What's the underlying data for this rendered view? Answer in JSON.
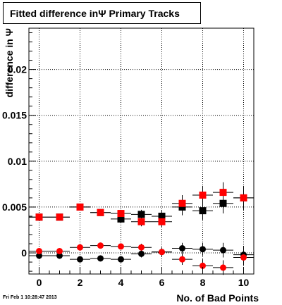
{
  "chart_data": {
    "type": "scatter",
    "title": "Fitted difference inΨ  Primary Tracks",
    "xlabel": "No. of Bad Points",
    "ylabel": "difference in Ψ",
    "xlim": [
      -0.5,
      10.5
    ],
    "ylim": [
      -0.0023,
      0.0245
    ],
    "x_ticks": [
      0,
      2,
      4,
      6,
      8,
      10
    ],
    "y_ticks": [
      {
        "value": 0,
        "label": "0"
      },
      {
        "value": 0.005,
        "label": "0.005"
      },
      {
        "value": 0.01,
        "label": "0.01"
      },
      {
        "value": 0.015,
        "label": "0.015"
      },
      {
        "value": 0.02,
        "label": "0.02"
      }
    ],
    "grid": true,
    "series": [
      {
        "marker": "square",
        "color": "#000000",
        "points": [
          {
            "x": 0,
            "y": 0.0039,
            "err": 0.0001
          },
          {
            "x": 1,
            "y": 0.0039,
            "err": 0.0001
          },
          {
            "x": 2,
            "y": 0.005,
            "err": 0.0002
          },
          {
            "x": 3,
            "y": 0.0044,
            "err": 0.0003
          },
          {
            "x": 4,
            "y": 0.0037,
            "err": 0.0004
          },
          {
            "x": 5,
            "y": 0.0042,
            "err": 0.0005
          },
          {
            "x": 6,
            "y": 0.004,
            "err": 0.0006
          },
          {
            "x": 7,
            "y": 0.005,
            "err": 0.0009
          },
          {
            "x": 8,
            "y": 0.0046,
            "err": 0.001
          },
          {
            "x": 9,
            "y": 0.0054,
            "err": 0.0011
          },
          {
            "x": 10,
            "y": 0.006,
            "err": 0.0013
          }
        ]
      },
      {
        "marker": "square",
        "color": "#ff0000",
        "points": [
          {
            "x": 0,
            "y": 0.0039,
            "err": 0.0001
          },
          {
            "x": 1,
            "y": 0.0039,
            "err": 0.0001
          },
          {
            "x": 2,
            "y": 0.005,
            "err": 0.0002
          },
          {
            "x": 3,
            "y": 0.0044,
            "err": 0.0003
          },
          {
            "x": 4,
            "y": 0.0043,
            "err": 0.0004
          },
          {
            "x": 5,
            "y": 0.0034,
            "err": 0.0005
          },
          {
            "x": 6,
            "y": 0.0034,
            "err": 0.0006
          },
          {
            "x": 7,
            "y": 0.0054,
            "err": 0.0009
          },
          {
            "x": 8,
            "y": 0.0063,
            "err": 0.001
          },
          {
            "x": 9,
            "y": 0.0066,
            "err": 0.0011
          },
          {
            "x": 10,
            "y": 0.006,
            "err": 0.0013
          }
        ]
      },
      {
        "marker": "circle",
        "color": "#000000",
        "points": [
          {
            "x": 0,
            "y": -0.0003,
            "err": 0.0001
          },
          {
            "x": 1,
            "y": -0.0003,
            "err": 0.0001
          },
          {
            "x": 2,
            "y": -0.0007,
            "err": 0.0002
          },
          {
            "x": 3,
            "y": -0.0006,
            "err": 0.0002
          },
          {
            "x": 4,
            "y": -0.0007,
            "err": 0.0003
          },
          {
            "x": 5,
            "y": -0.0001,
            "err": 0.0004
          },
          {
            "x": 6,
            "y": 0.0001,
            "err": 0.0005
          },
          {
            "x": 7,
            "y": 0.0005,
            "err": 0.0006
          },
          {
            "x": 8,
            "y": 0.0004,
            "err": 0.0007
          },
          {
            "x": 9,
            "y": 0.0003,
            "err": 0.0008
          },
          {
            "x": 10,
            "y": -0.0002,
            "err": 0.0009
          }
        ]
      },
      {
        "marker": "circle",
        "color": "#ff0000",
        "points": [
          {
            "x": 0,
            "y": 0.0002,
            "err": 0.0001
          },
          {
            "x": 1,
            "y": 0.0002,
            "err": 0.0001
          },
          {
            "x": 2,
            "y": 0.0006,
            "err": 0.0002
          },
          {
            "x": 3,
            "y": 0.0008,
            "err": 0.0002
          },
          {
            "x": 4,
            "y": 0.0007,
            "err": 0.0003
          },
          {
            "x": 5,
            "y": 0.0006,
            "err": 0.0004
          },
          {
            "x": 6,
            "y": 0.0001,
            "err": 0.0005
          },
          {
            "x": 7,
            "y": -0.0007,
            "err": 0.0006
          },
          {
            "x": 8,
            "y": -0.0014,
            "err": 0.0007
          },
          {
            "x": 9,
            "y": -0.0016,
            "err": 0.0008
          },
          {
            "x": 10,
            "y": -0.0005,
            "err": 0.0009
          }
        ]
      }
    ]
  },
  "footer": {
    "timestamp": "Fri Feb  1 10:28:47 2013"
  }
}
